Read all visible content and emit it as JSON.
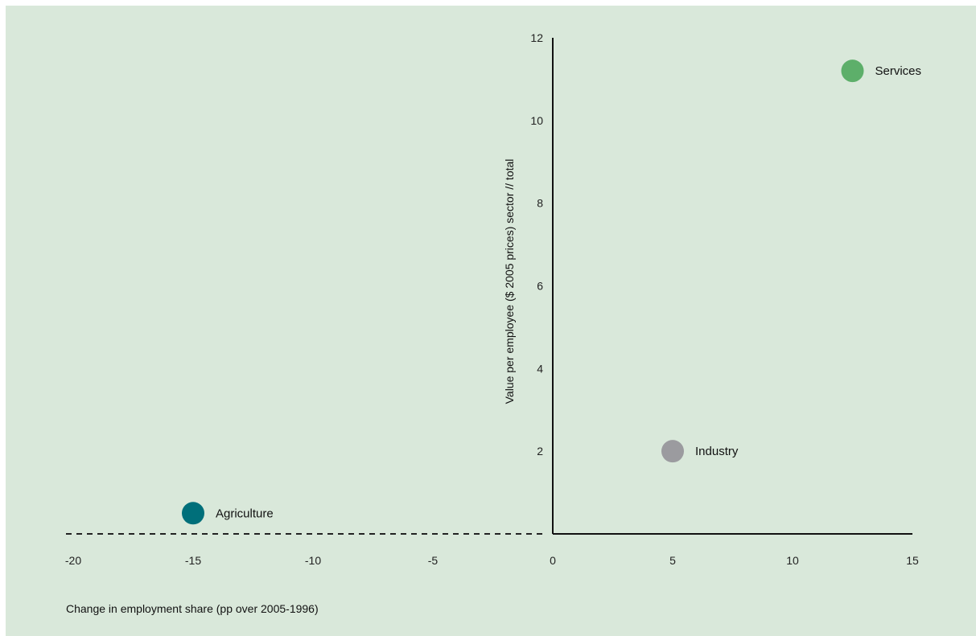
{
  "chart_data": {
    "type": "scatter",
    "title": "",
    "xlabel": "Change in employment share (pp over 2005-1996)",
    "ylabel": "Value per employee ($ 2005 prices) sector // total",
    "xlim": [
      -20,
      15
    ],
    "ylim": [
      0,
      12
    ],
    "x_ticks": [
      "-20",
      "-15",
      "-10",
      "-5",
      "0",
      "5",
      "10",
      "15"
    ],
    "y_ticks": [
      "2",
      "4",
      "6",
      "8",
      "10",
      "12"
    ],
    "grid": false,
    "negative_x_axis_style": "dashed",
    "points": [
      {
        "label": "Agriculture",
        "x": -15,
        "y": 0.5,
        "color": "#006f7a"
      },
      {
        "label": "Industry",
        "x": 5,
        "y": 2,
        "color": "#9b9b9f"
      },
      {
        "label": "Services",
        "x": 12.5,
        "y": 11.2,
        "color": "#5daf6a"
      }
    ],
    "background_color": "#d9e8da"
  }
}
